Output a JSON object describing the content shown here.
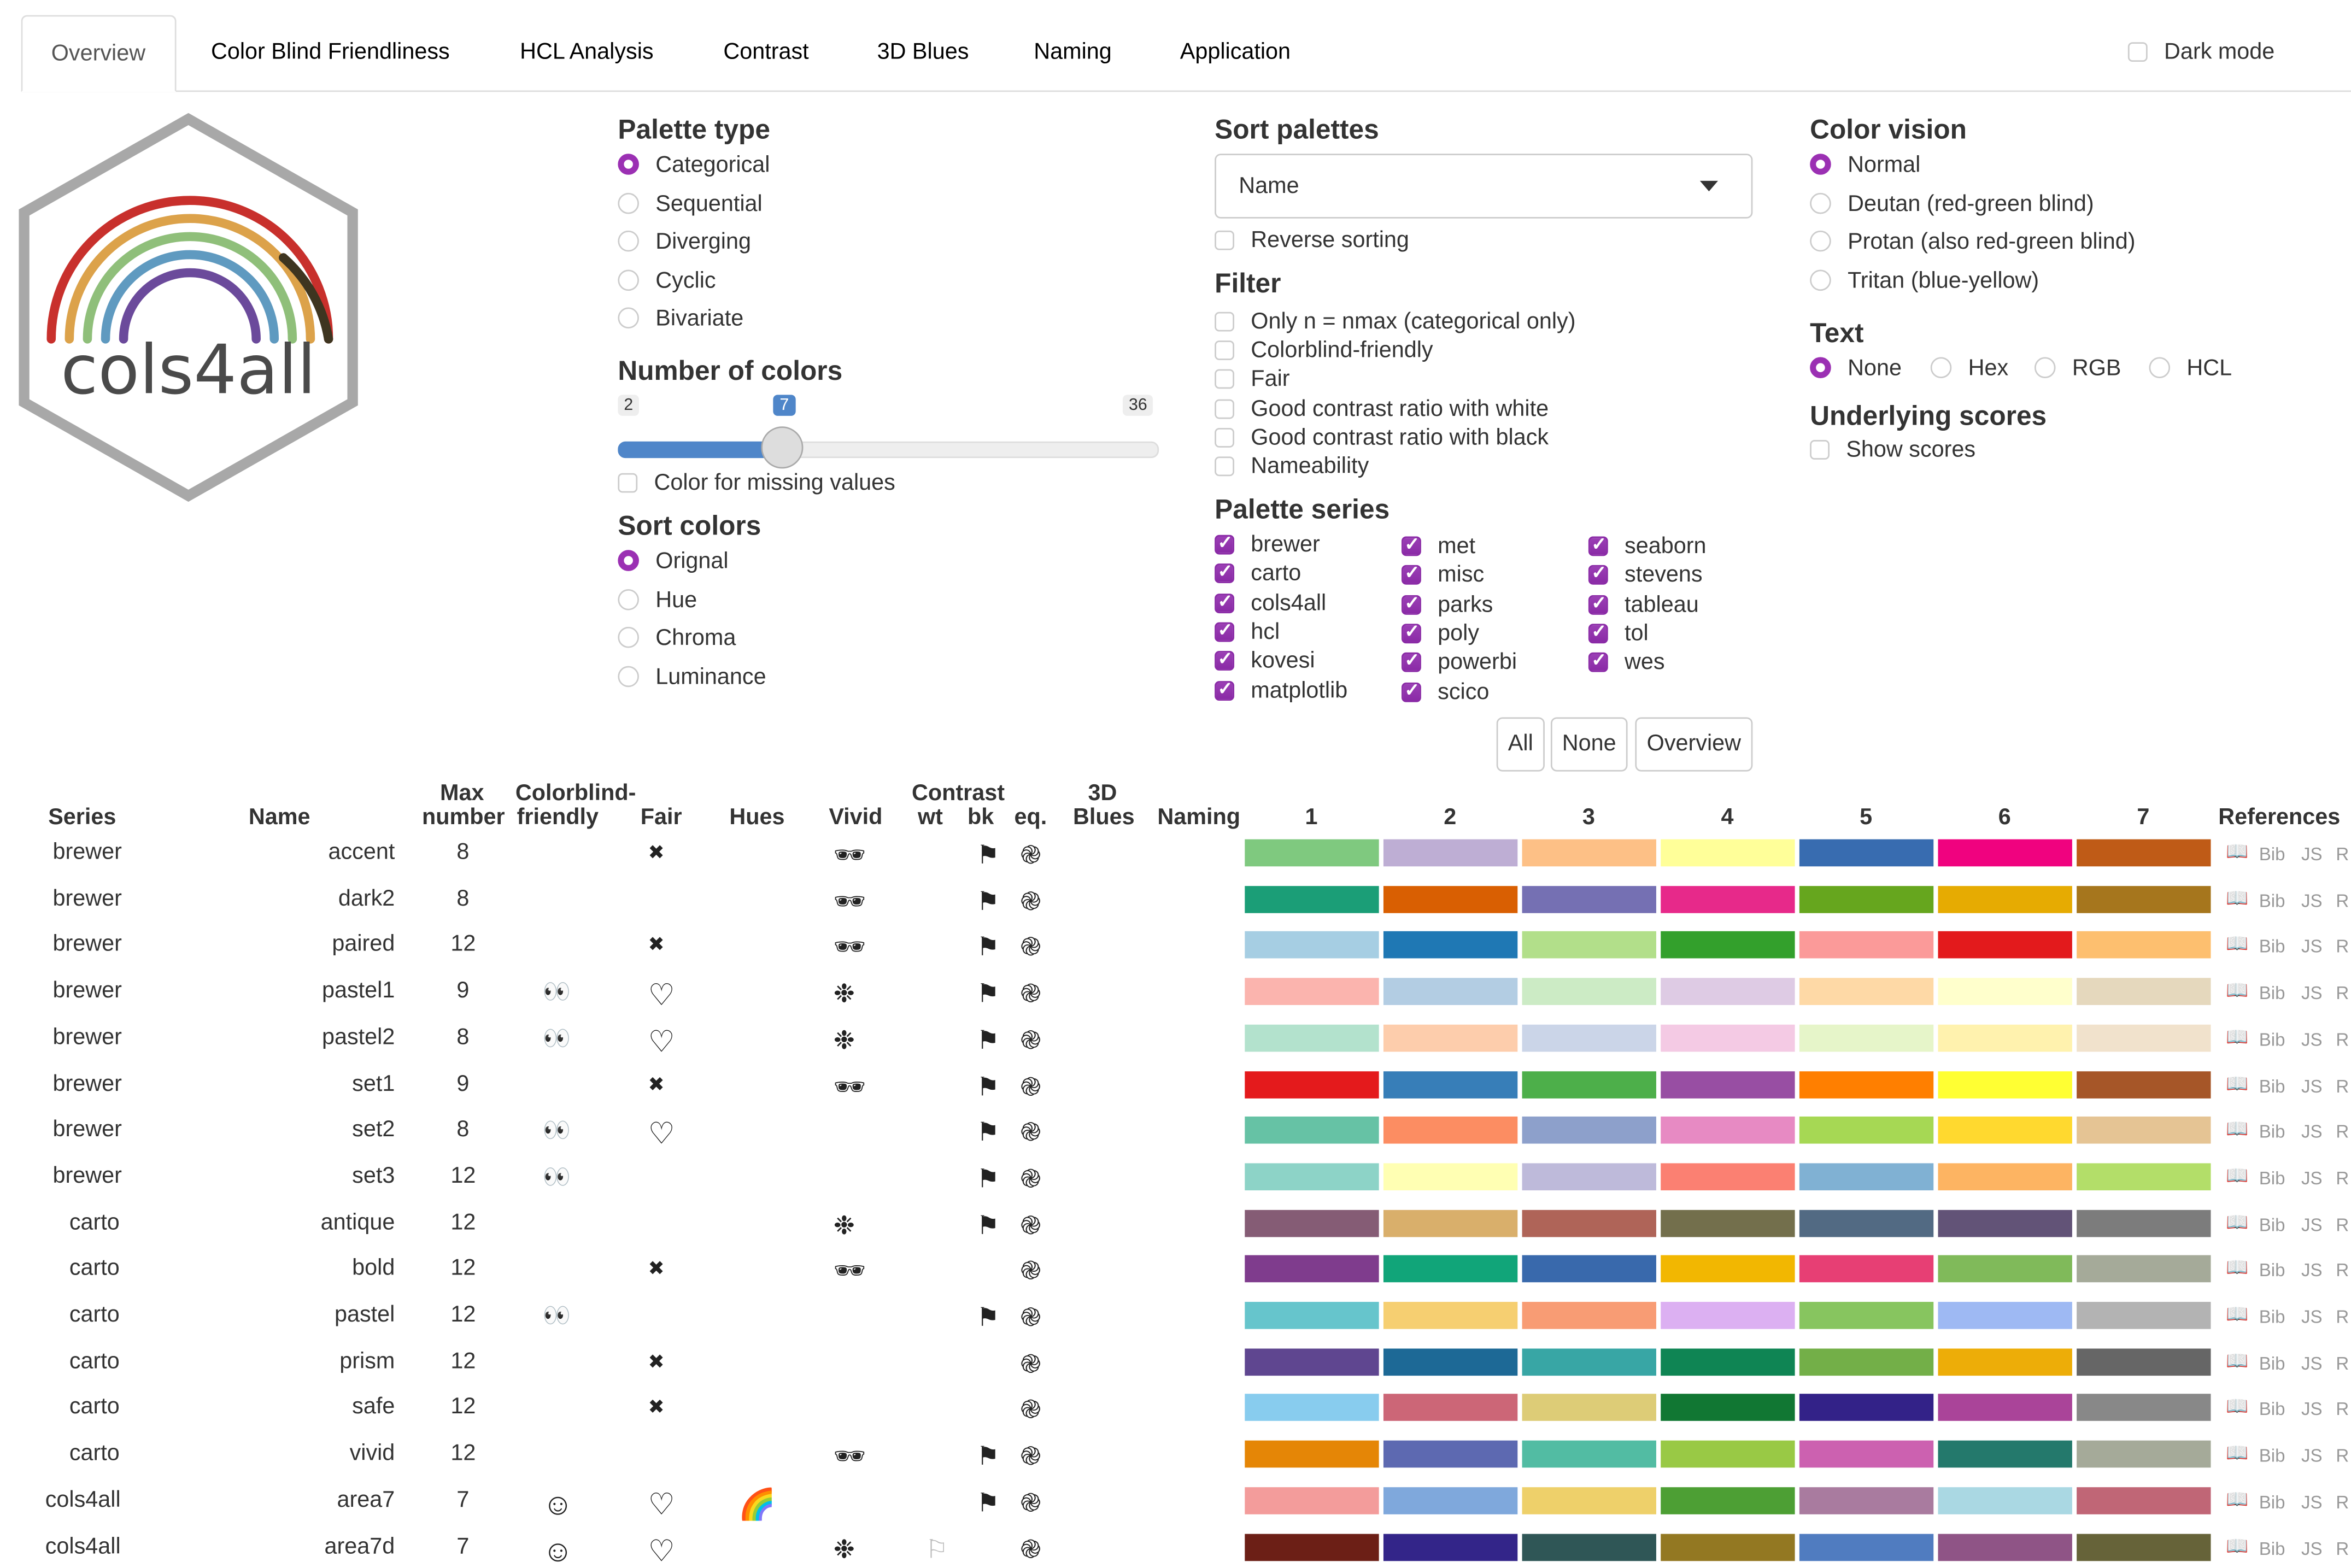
{
  "tabs": [
    "Overview",
    "Color Blind Friendliness",
    "HCL Analysis",
    "Contrast",
    "3D Blues",
    "Naming",
    "Application"
  ],
  "active_tab": "Overview",
  "dark_mode": {
    "label": "Dark mode",
    "checked": false
  },
  "logo": {
    "text": "cols4all"
  },
  "palette_type": {
    "title": "Palette type",
    "options": [
      "Categorical",
      "Sequential",
      "Diverging",
      "Cyclic",
      "Bivariate"
    ],
    "selected": "Categorical"
  },
  "number_of_colors": {
    "title": "Number of colors",
    "min": 2,
    "max": 36,
    "value": 7,
    "min_label": "2",
    "max_label": "36",
    "value_label": "7"
  },
  "missing_values": {
    "label": "Color for missing values",
    "checked": false
  },
  "sort_colors": {
    "title": "Sort colors",
    "options": [
      "Orignal",
      "Hue",
      "Chroma",
      "Luminance"
    ],
    "selected": "Orignal"
  },
  "sort_palettes": {
    "title": "Sort palettes",
    "selected": "Name",
    "reverse_label": "Reverse sorting"
  },
  "filter": {
    "title": "Filter",
    "options": [
      "Only n = nmax (categorical only)",
      "Colorblind-friendly",
      "Fair",
      "Good contrast ratio with white",
      "Good contrast ratio with black",
      "Nameability"
    ]
  },
  "palette_series": {
    "title": "Palette series",
    "columns": [
      [
        "brewer",
        "carto",
        "cols4all",
        "hcl",
        "kovesi",
        "matplotlib"
      ],
      [
        "met",
        "misc",
        "parks",
        "poly",
        "powerbi",
        "scico"
      ],
      [
        "seaborn",
        "stevens",
        "tableau",
        "tol",
        "wes"
      ]
    ],
    "all_checked": true,
    "buttons": [
      "All",
      "None",
      "Overview"
    ]
  },
  "color_vision": {
    "title": "Color vision",
    "options": [
      "Normal",
      "Deutan (red-green blind)",
      "Protan (also red-green blind)",
      "Tritan (blue-yellow)"
    ],
    "selected": "Normal"
  },
  "text_mode": {
    "title": "Text",
    "options": [
      "None",
      "Hex",
      "RGB",
      "HCL"
    ],
    "selected": "None"
  },
  "underlying_scores": {
    "title": "Underlying scores",
    "label": "Show scores"
  },
  "table": {
    "headers": {
      "series": "Series",
      "name": "Name",
      "max_number_1": "Max",
      "max_number_2": "number",
      "cbf_1": "Colorblind-",
      "cbf_2": "friendly",
      "fair": "Fair",
      "hues": "Hues",
      "vivid": "Vivid",
      "contrast": "Contrast",
      "wt": "wt",
      "bk": "bk",
      "eq": "eq.",
      "blues_1": "3D",
      "blues_2": "Blues",
      "naming": "Naming",
      "colors": [
        "1",
        "2",
        "3",
        "4",
        "5",
        "6",
        "7"
      ],
      "references": "References"
    },
    "ref_links": [
      "Bib",
      "JS",
      "R"
    ],
    "rows": [
      {
        "series": "brewer",
        "name": "accent",
        "max": "8",
        "cbf": "",
        "fair": "cross",
        "hues": "",
        "vivid": "sunglasses",
        "wt": "",
        "bk": "black-flag",
        "eq": "spiral",
        "colors": [
          "#7FC97F",
          "#BEAED4",
          "#FDC086",
          "#FFFF99",
          "#386CB0",
          "#F0027F",
          "#BF5B17"
        ]
      },
      {
        "series": "brewer",
        "name": "dark2",
        "max": "8",
        "cbf": "",
        "fair": "",
        "hues": "",
        "vivid": "sunglasses",
        "wt": "",
        "bk": "black-flag",
        "eq": "spiral",
        "colors": [
          "#1B9E77",
          "#D95F02",
          "#7570B3",
          "#E7298A",
          "#66A61E",
          "#E6AB02",
          "#A6761D"
        ]
      },
      {
        "series": "brewer",
        "name": "paired",
        "max": "12",
        "cbf": "",
        "fair": "cross",
        "hues": "",
        "vivid": "sunglasses",
        "wt": "",
        "bk": "black-flag",
        "eq": "spiral",
        "colors": [
          "#A6CEE3",
          "#1F78B4",
          "#B2DF8A",
          "#33A02C",
          "#FB9A99",
          "#E31A1C",
          "#FDBF6F"
        ]
      },
      {
        "series": "brewer",
        "name": "pastel1",
        "max": "9",
        "cbf": "eyes",
        "fair": "heart",
        "hues": "",
        "vivid": "snowflake",
        "wt": "",
        "bk": "black-flag",
        "eq": "spiral",
        "colors": [
          "#FBB4AE",
          "#B3CDE3",
          "#CCEBC5",
          "#DECBE4",
          "#FED9A6",
          "#FFFFCC",
          "#E5D8BD"
        ]
      },
      {
        "series": "brewer",
        "name": "pastel2",
        "max": "8",
        "cbf": "eyes",
        "fair": "heart",
        "hues": "",
        "vivid": "snowflake",
        "wt": "",
        "bk": "black-flag",
        "eq": "spiral",
        "colors": [
          "#B3E2CD",
          "#FDCDAC",
          "#CBD5E8",
          "#F4CAE4",
          "#E6F5C9",
          "#FFF2AE",
          "#F1E2CC"
        ]
      },
      {
        "series": "brewer",
        "name": "set1",
        "max": "9",
        "cbf": "",
        "fair": "cross",
        "hues": "",
        "vivid": "sunglasses",
        "wt": "",
        "bk": "black-flag",
        "eq": "spiral",
        "colors": [
          "#E41A1C",
          "#377EB8",
          "#4DAF4A",
          "#984EA3",
          "#FF7F00",
          "#FFFF33",
          "#A65628"
        ]
      },
      {
        "series": "brewer",
        "name": "set2",
        "max": "8",
        "cbf": "eyes",
        "fair": "heart",
        "hues": "",
        "vivid": "",
        "wt": "",
        "bk": "black-flag",
        "eq": "spiral",
        "colors": [
          "#66C2A5",
          "#FC8D62",
          "#8DA0CB",
          "#E78AC3",
          "#A6D854",
          "#FFD92F",
          "#E5C494"
        ]
      },
      {
        "series": "brewer",
        "name": "set3",
        "max": "12",
        "cbf": "eyes",
        "fair": "",
        "hues": "",
        "vivid": "",
        "wt": "",
        "bk": "black-flag",
        "eq": "spiral",
        "colors": [
          "#8DD3C7",
          "#FFFFB3",
          "#BEBADA",
          "#FB8072",
          "#80B1D3",
          "#FDB462",
          "#B3DE69"
        ]
      },
      {
        "series": "carto",
        "name": "antique",
        "max": "12",
        "cbf": "",
        "fair": "",
        "hues": "",
        "vivid": "snowflake",
        "wt": "",
        "bk": "black-flag",
        "eq": "spiral",
        "colors": [
          "#855C75",
          "#D9AF6B",
          "#AF6458",
          "#736F4C",
          "#526A83",
          "#625377",
          "#7C7C7C"
        ]
      },
      {
        "series": "carto",
        "name": "bold",
        "max": "12",
        "cbf": "",
        "fair": "cross",
        "hues": "",
        "vivid": "sunglasses",
        "wt": "",
        "bk": "",
        "eq": "spiral",
        "colors": [
          "#7F3C8D",
          "#11A579",
          "#3969AC",
          "#F2B701",
          "#E73F74",
          "#80BA5A",
          "#A5AA99"
        ]
      },
      {
        "series": "carto",
        "name": "pastel",
        "max": "12",
        "cbf": "eyes",
        "fair": "",
        "hues": "",
        "vivid": "",
        "wt": "",
        "bk": "black-flag",
        "eq": "spiral",
        "colors": [
          "#66C5CC",
          "#F6CF71",
          "#F89C74",
          "#DCB0F2",
          "#87C55F",
          "#9EB9F3",
          "#B3B3B3"
        ]
      },
      {
        "series": "carto",
        "name": "prism",
        "max": "12",
        "cbf": "",
        "fair": "cross",
        "hues": "",
        "vivid": "",
        "wt": "",
        "bk": "",
        "eq": "spiral",
        "colors": [
          "#5F4690",
          "#1D6996",
          "#38A6A5",
          "#0F8554",
          "#73AF48",
          "#EDAD08",
          "#666666"
        ]
      },
      {
        "series": "carto",
        "name": "safe",
        "max": "12",
        "cbf": "",
        "fair": "cross",
        "hues": "",
        "vivid": "",
        "wt": "",
        "bk": "",
        "eq": "spiral",
        "colors": [
          "#88CCEE",
          "#CC6677",
          "#DDCC77",
          "#117733",
          "#332288",
          "#AA4499",
          "#888888"
        ]
      },
      {
        "series": "carto",
        "name": "vivid",
        "max": "12",
        "cbf": "",
        "fair": "",
        "hues": "",
        "vivid": "sunglasses",
        "wt": "",
        "bk": "black-flag",
        "eq": "spiral",
        "colors": [
          "#E58606",
          "#5D69B1",
          "#52BCA3",
          "#99C945",
          "#CC61B0",
          "#24796C",
          "#A5AA99"
        ]
      },
      {
        "series": "cols4all",
        "name": "area7",
        "max": "7",
        "cbf": "smiley",
        "fair": "heart",
        "hues": "rainbow",
        "vivid": "",
        "wt": "",
        "bk": "black-flag",
        "eq": "spiral",
        "colors": [
          "#F39C9B",
          "#7FA8DC",
          "#EED06A",
          "#4D9F34",
          "#A97B9F",
          "#AAD8E3",
          "#C06676"
        ]
      },
      {
        "series": "cols4all",
        "name": "area7d",
        "max": "7",
        "cbf": "smiley",
        "fair": "heart",
        "hues": "",
        "vivid": "snowflake",
        "wt": "white-flag",
        "bk": "",
        "eq": "spiral",
        "colors": [
          "#6C1F16",
          "#332589",
          "#2F5656",
          "#937822",
          "#507CC0",
          "#8F5486",
          "#666339"
        ]
      }
    ]
  },
  "icon_glyphs": {
    "cross": "✖",
    "heart": "♡",
    "sunglasses": "🕶",
    "snowflake": "❉",
    "black-flag": "⚑",
    "white-flag": "⚐",
    "spiral": "֎",
    "eyes": "👀",
    "smiley": "☺",
    "rainbow": "🌈",
    "book": "📖"
  },
  "colors": {
    "accent_purple": "#9B30B3",
    "slider_blue": "#4F86C9"
  }
}
